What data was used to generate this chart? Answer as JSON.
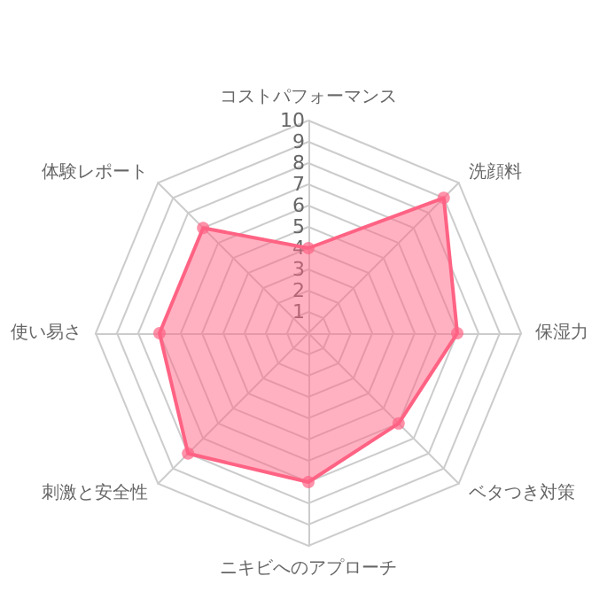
{
  "chart_data": {
    "type": "radar",
    "categories": [
      "コストパフォーマンス",
      "洗顔料",
      "保湿力",
      "ベタつき対策",
      "ニキビへのアプローチ",
      "刺激と安全性",
      "使い易さ",
      "体験レポート"
    ],
    "series": [
      {
        "color": "#ff6384",
        "values": [
          4,
          9,
          7,
          6,
          7,
          8,
          7,
          7
        ]
      }
    ],
    "ylim": [
      0,
      10
    ],
    "yticks": [
      1,
      2,
      3,
      4,
      5,
      6,
      7,
      8,
      9,
      10
    ],
    "marker": "circle"
  }
}
